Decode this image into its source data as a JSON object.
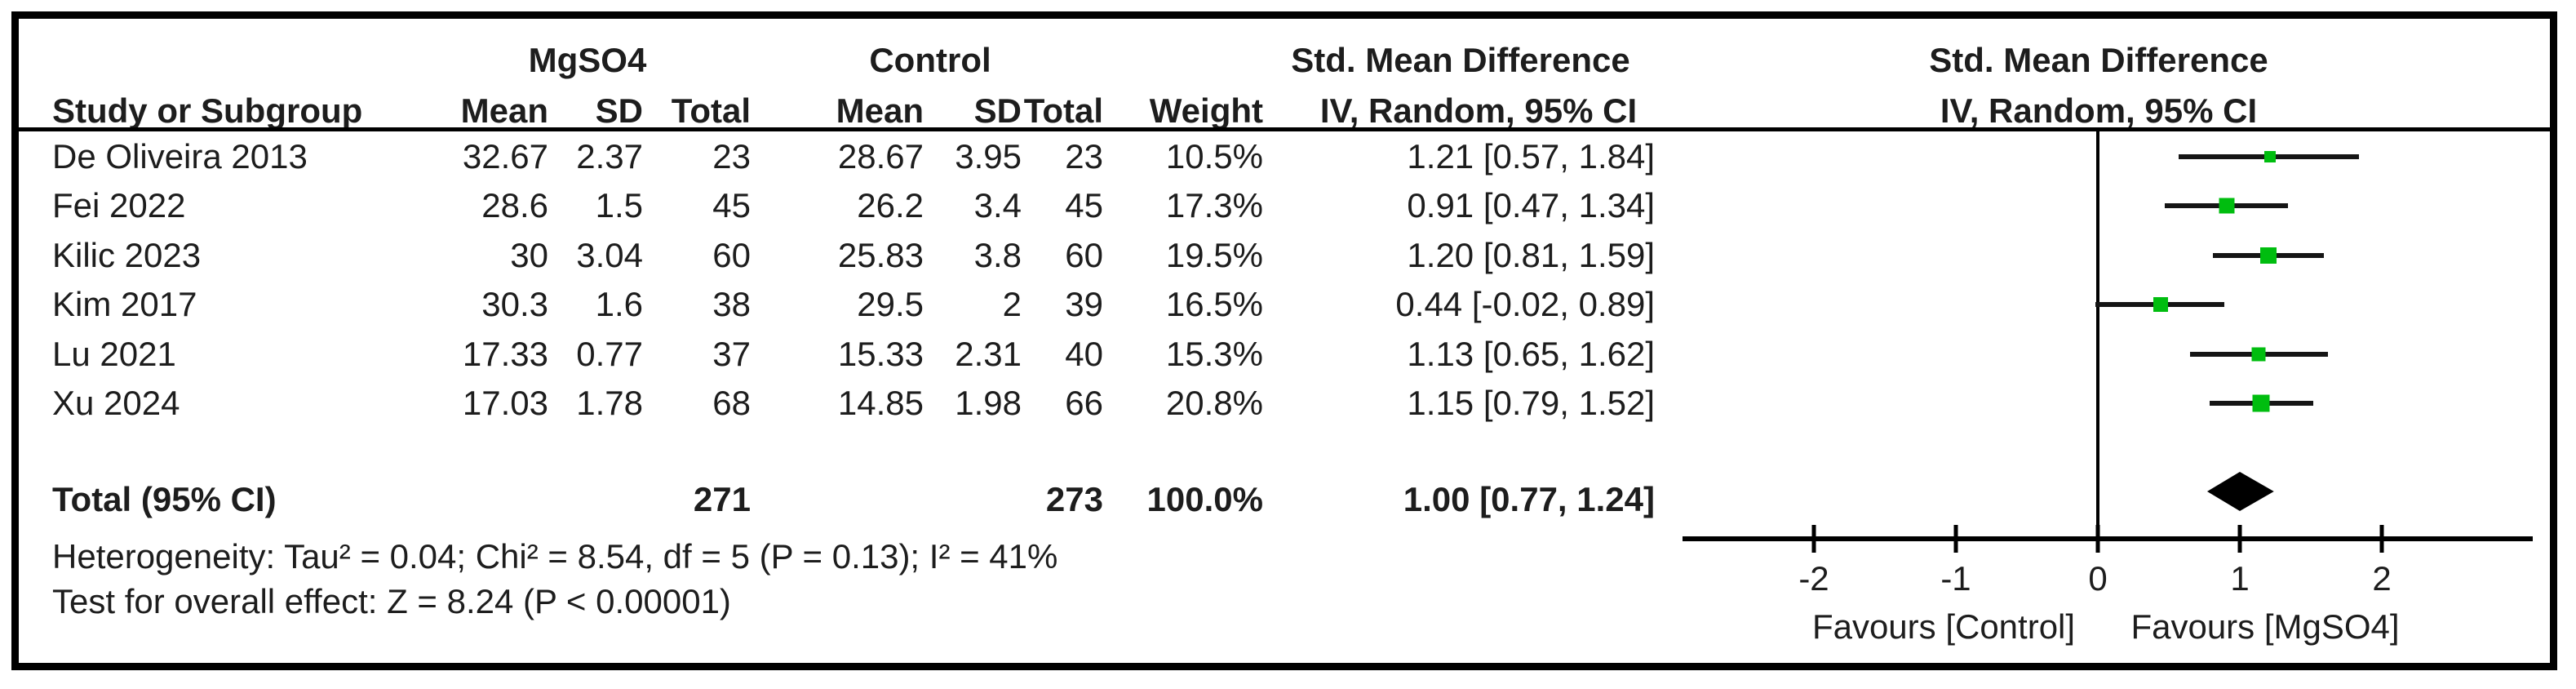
{
  "header": {
    "group": {
      "mgso4": "MgSO4",
      "control": "Control",
      "smd_left": "Std. Mean Difference",
      "smd_right": "Std. Mean Difference"
    },
    "columns": {
      "study": "Study or Subgroup",
      "mean": "Mean",
      "sd": "SD",
      "total": "Total",
      "mean2": "Mean",
      "sd2": "SD",
      "total2": "Total",
      "weight": "Weight",
      "iv_left": "IV, Random, 95% CI",
      "iv_right": "IV, Random, 95% CI"
    }
  },
  "chart_data": {
    "type": "forest",
    "effect_measure": "Std. Mean Difference",
    "model": "IV, Random, 95% CI",
    "studies": [
      {
        "name": "De Oliveira 2013",
        "mgso4_mean": "32.67",
        "mgso4_sd": "2.37",
        "mgso4_total": "23",
        "control_mean": "28.67",
        "control_sd": "3.95",
        "control_total": "23",
        "weight": "10.5%",
        "weight_pct": 10.5,
        "smd": 1.21,
        "ci_low": 0.57,
        "ci_high": 1.84,
        "ci_text": "1.21 [0.57, 1.84]"
      },
      {
        "name": "Fei 2022",
        "mgso4_mean": "28.6",
        "mgso4_sd": "1.5",
        "mgso4_total": "45",
        "control_mean": "26.2",
        "control_sd": "3.4",
        "control_total": "45",
        "weight": "17.3%",
        "weight_pct": 17.3,
        "smd": 0.91,
        "ci_low": 0.47,
        "ci_high": 1.34,
        "ci_text": "0.91 [0.47, 1.34]"
      },
      {
        "name": "Kilic 2023",
        "mgso4_mean": "30",
        "mgso4_sd": "3.04",
        "mgso4_total": "60",
        "control_mean": "25.83",
        "control_sd": "3.8",
        "control_total": "60",
        "weight": "19.5%",
        "weight_pct": 19.5,
        "smd": 1.2,
        "ci_low": 0.81,
        "ci_high": 1.59,
        "ci_text": "1.20 [0.81, 1.59]"
      },
      {
        "name": "Kim 2017",
        "mgso4_mean": "30.3",
        "mgso4_sd": "1.6",
        "mgso4_total": "38",
        "control_mean": "29.5",
        "control_sd": "2",
        "control_total": "39",
        "weight": "16.5%",
        "weight_pct": 16.5,
        "smd": 0.44,
        "ci_low": -0.02,
        "ci_high": 0.89,
        "ci_text": "0.44 [-0.02, 0.89]"
      },
      {
        "name": "Lu 2021",
        "mgso4_mean": "17.33",
        "mgso4_sd": "0.77",
        "mgso4_total": "37",
        "control_mean": "15.33",
        "control_sd": "2.31",
        "control_total": "40",
        "weight": "15.3%",
        "weight_pct": 15.3,
        "smd": 1.13,
        "ci_low": 0.65,
        "ci_high": 1.62,
        "ci_text": "1.13 [0.65, 1.62]"
      },
      {
        "name": "Xu 2024",
        "mgso4_mean": "17.03",
        "mgso4_sd": "1.78",
        "mgso4_total": "68",
        "control_mean": "14.85",
        "control_sd": "1.98",
        "control_total": "66",
        "weight": "20.8%",
        "weight_pct": 20.8,
        "smd": 1.15,
        "ci_low": 0.79,
        "ci_high": 1.52,
        "ci_text": "1.15 [0.79, 1.52]"
      }
    ],
    "total": {
      "label": "Total (95% CI)",
      "mgso4_total": "271",
      "control_total": "273",
      "weight": "100.0%",
      "smd": 1.0,
      "ci_low": 0.77,
      "ci_high": 1.24,
      "ci_text": "1.00 [0.77, 1.24]"
    },
    "heterogeneity": "Heterogeneity: Tau² = 0.04; Chi² = 8.54, df = 5 (P = 0.13); I² = 41%",
    "overall_effect": "Test for overall effect: Z = 8.24 (P < 0.00001)",
    "axis": {
      "ticks": [
        -2,
        -1,
        0,
        1,
        2
      ],
      "xmin": -2.93,
      "xmax": 3.06
    },
    "favours_left": "Favours [Control]",
    "favours_right": "Favours [MgSO4]",
    "marker_color": "#00bd0f",
    "line_color": "#151515",
    "text_color": "#1d1d1d"
  }
}
